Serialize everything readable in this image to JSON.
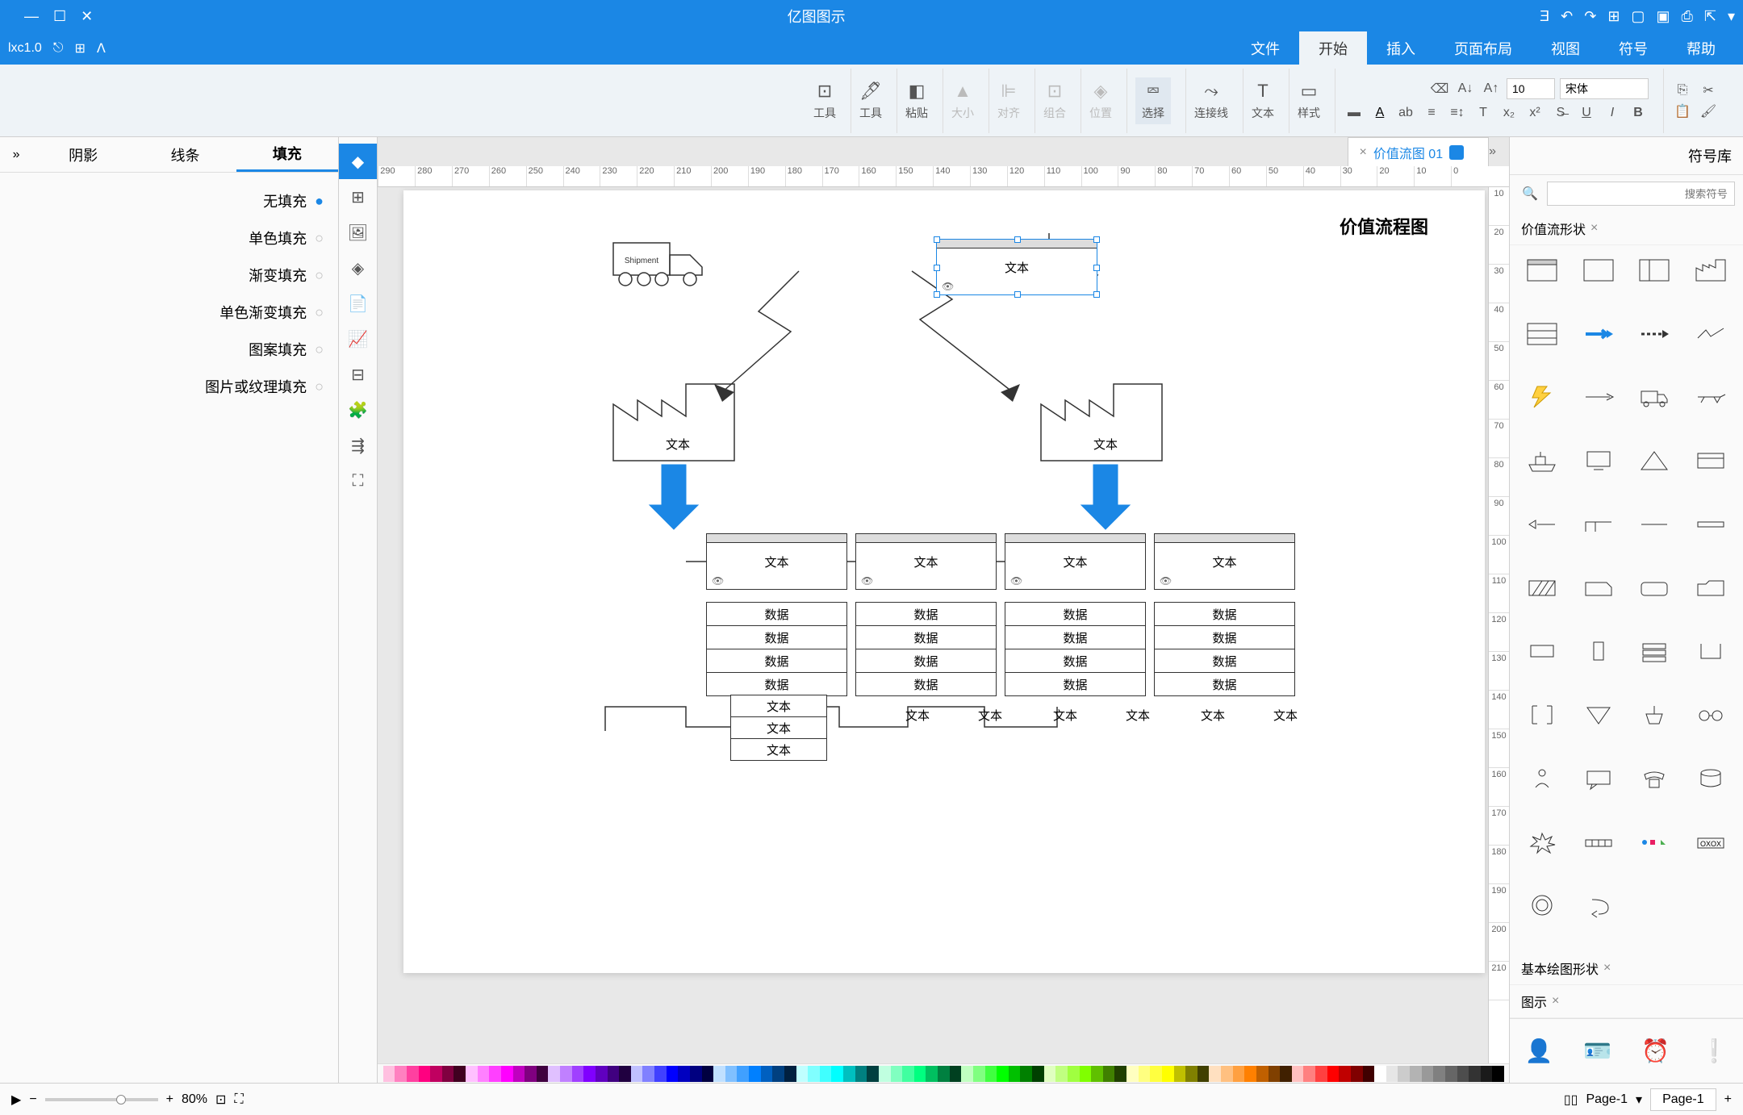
{
  "app_title": "亿图图示",
  "version_label": "lxc1.0",
  "menu_tabs": [
    "文件",
    "开始",
    "插入",
    "页面布局",
    "视图",
    "符号",
    "帮助"
  ],
  "menu_active": 1,
  "ribbon": {
    "font_name": "宋体",
    "font_size": "10",
    "groups": {
      "style": "样式",
      "text": "文本",
      "connector": "连接线",
      "select": "选择",
      "position": "位置",
      "combine": "组合",
      "align": "对齐",
      "size": "大小",
      "paste": "粘贴",
      "tools": "工具"
    }
  },
  "left_panel": {
    "header": "符号库",
    "search_placeholder": "搜索符号",
    "sections": [
      "价值流形状",
      "基本绘图形状",
      "图示"
    ]
  },
  "doc_tab": "价值流图 01",
  "right_tabs": [
    "填充",
    "线条",
    "阴影"
  ],
  "right_active": 0,
  "fill_options": [
    "无填充",
    "单色填充",
    "渐变填充",
    "单色渐变填充",
    "图案填充",
    "图片或纹理填充"
  ],
  "fill_selected": 0,
  "diagram": {
    "title": "价值流程图",
    "text_label": "文本",
    "data_label": "数据",
    "shipment": "Shipment"
  },
  "ruler_h": [
    "0",
    "10",
    "20",
    "30",
    "40",
    "50",
    "60",
    "70",
    "80",
    "90",
    "100",
    "110",
    "120",
    "130",
    "140",
    "150",
    "160",
    "170",
    "180",
    "190",
    "200",
    "210",
    "220",
    "230",
    "240",
    "250",
    "260",
    "270",
    "280",
    "290"
  ],
  "ruler_v": [
    "10",
    "20",
    "30",
    "40",
    "50",
    "60",
    "70",
    "80",
    "90",
    "100",
    "110",
    "120",
    "130",
    "140",
    "150",
    "160",
    "170",
    "180",
    "190",
    "200",
    "210"
  ],
  "page_tab": "Page-1",
  "page_sel": "Page-1",
  "zoom": "80%",
  "colors": [
    "#000000",
    "#1a1a1a",
    "#333333",
    "#4d4d4d",
    "#666666",
    "#808080",
    "#999999",
    "#b3b3b3",
    "#cccccc",
    "#e6e6e6",
    "#ffffff",
    "#400000",
    "#800000",
    "#c00000",
    "#ff0000",
    "#ff4040",
    "#ff8080",
    "#ffc0c0",
    "#402000",
    "#804000",
    "#c06000",
    "#ff8000",
    "#ffa040",
    "#ffc080",
    "#ffe0c0",
    "#404000",
    "#808000",
    "#c0c000",
    "#ffff00",
    "#ffff40",
    "#ffff80",
    "#ffffc0",
    "#204000",
    "#408000",
    "#60c000",
    "#80ff00",
    "#a0ff40",
    "#c0ff80",
    "#e0ffc0",
    "#004000",
    "#008000",
    "#00c000",
    "#00ff00",
    "#40ff40",
    "#80ff80",
    "#c0ffc0",
    "#004020",
    "#008040",
    "#00c060",
    "#00ff80",
    "#40ffa0",
    "#80ffc0",
    "#c0ffe0",
    "#004040",
    "#008080",
    "#00c0c0",
    "#00ffff",
    "#40ffff",
    "#80ffff",
    "#c0ffff",
    "#002040",
    "#004080",
    "#0060c0",
    "#0080ff",
    "#40a0ff",
    "#80c0ff",
    "#c0e0ff",
    "#000040",
    "#000080",
    "#0000c0",
    "#0000ff",
    "#4040ff",
    "#8080ff",
    "#c0c0ff",
    "#200040",
    "#400080",
    "#6000c0",
    "#8000ff",
    "#a040ff",
    "#c080ff",
    "#e0c0ff",
    "#400040",
    "#800080",
    "#c000c0",
    "#ff00ff",
    "#ff40ff",
    "#ff80ff",
    "#ffc0ff",
    "#400020",
    "#800040",
    "#c00060",
    "#ff0080",
    "#ff40a0",
    "#ff80c0",
    "#ffc0e0"
  ]
}
